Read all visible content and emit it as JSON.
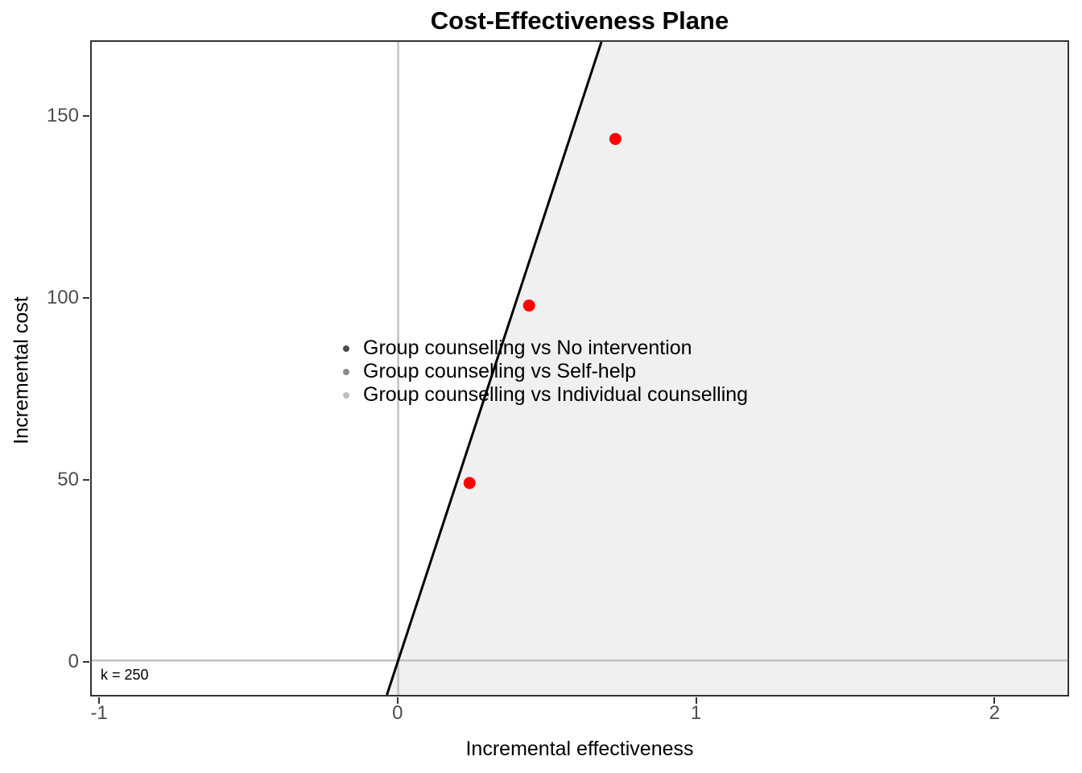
{
  "chart_data": {
    "type": "scatter",
    "title": "Cost-Effectiveness Plane",
    "xlabel": "Incremental effectiveness",
    "ylabel": "Incremental cost",
    "xlim": [
      -1.03,
      2.25
    ],
    "ylim": [
      -9.5,
      170.8
    ],
    "x_ticks": [
      "-1",
      "0",
      "1",
      "2"
    ],
    "x_tick_values": [
      -1,
      0,
      1,
      2
    ],
    "y_ticks": [
      "0",
      "50",
      "100",
      "150"
    ],
    "y_tick_values": [
      0,
      50,
      100,
      150
    ],
    "grid": false,
    "wtp_threshold": {
      "k_value": 250,
      "label": "k = 250",
      "line_color": "#000000",
      "acceptance_region_fill": "#f0f0f0"
    },
    "reference_lines": {
      "vertical_x": 0,
      "horizontal_y": 0,
      "color": "#c2c2c2"
    },
    "points": [
      {
        "x": 0.73,
        "y": 144,
        "color": "#ff0000"
      },
      {
        "x": 0.44,
        "y": 98,
        "color": "#ff0000"
      },
      {
        "x": 0.24,
        "y": 49,
        "color": "#ff0000"
      }
    ],
    "point_radius": 7.5,
    "legend": {
      "position": "inside-center-left",
      "items": [
        {
          "label": "Group counselling vs No intervention",
          "color": "#4d4d4d"
        },
        {
          "label": "Group counselling vs Self-help",
          "color": "#8c8c8c"
        },
        {
          "label": "Group counselling vs Individual counselling",
          "color": "#bfbfbf"
        }
      ]
    }
  }
}
